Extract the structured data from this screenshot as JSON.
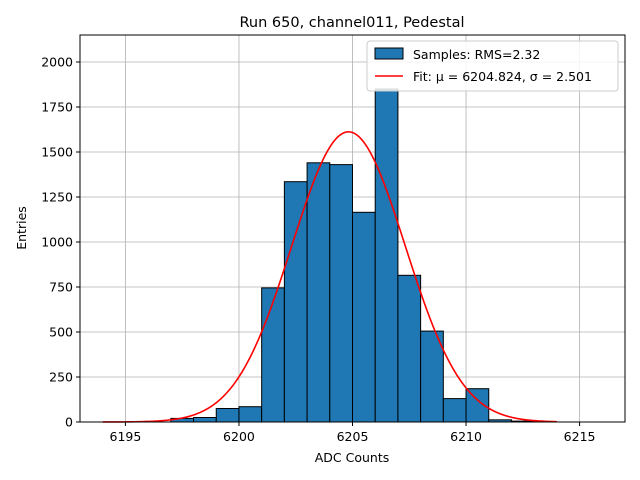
{
  "chart_data": {
    "type": "bar",
    "title": "Run 650, channel011, Pedestal",
    "xlabel": "ADC Counts",
    "ylabel": "Entries",
    "xlim": [
      6193,
      6217
    ],
    "ylim": [
      0,
      2150
    ],
    "xticks": [
      6195,
      6200,
      6205,
      6210,
      6215
    ],
    "yticks": [
      0,
      250,
      500,
      750,
      1000,
      1250,
      1500,
      1750,
      2000
    ],
    "grid": true,
    "legend_position": "top-right",
    "histogram": {
      "name": "Samples: RMS=2.32",
      "color": "#1f77b4",
      "bins": [
        {
          "x0": 6196.0,
          "x1": 6197.0,
          "count": 0
        },
        {
          "x0": 6197.0,
          "x1": 6198.0,
          "count": 20
        },
        {
          "x0": 6198.0,
          "x1": 6199.0,
          "count": 25
        },
        {
          "x0": 6199.0,
          "x1": 6200.0,
          "count": 75
        },
        {
          "x0": 6200.0,
          "x1": 6201.0,
          "count": 85
        },
        {
          "x0": 6201.0,
          "x1": 6202.0,
          "count": 745
        },
        {
          "x0": 6202.0,
          "x1": 6203.0,
          "count": 1335
        },
        {
          "x0": 6203.0,
          "x1": 6204.0,
          "count": 1440
        },
        {
          "x0": 6204.0,
          "x1": 6205.0,
          "count": 1430
        },
        {
          "x0": 6205.0,
          "x1": 6206.0,
          "count": 1165
        },
        {
          "x0": 6206.0,
          "x1": 6207.0,
          "count": 1850
        },
        {
          "x0": 6207.0,
          "x1": 6208.0,
          "count": 815
        },
        {
          "x0": 6208.0,
          "x1": 6209.0,
          "count": 505
        },
        {
          "x0": 6209.0,
          "x1": 6210.0,
          "count": 130
        },
        {
          "x0": 6210.0,
          "x1": 6211.0,
          "count": 185
        },
        {
          "x0": 6211.0,
          "x1": 6212.0,
          "count": 12
        },
        {
          "x0": 6212.0,
          "x1": 6213.0,
          "count": 5
        }
      ]
    },
    "fit": {
      "name": "Fit: μ = 6204.824, σ = 2.501",
      "mu": 6204.824,
      "sigma": 2.501,
      "amplitude": 1612,
      "x_range": [
        6194,
        6214
      ],
      "color": "#ff0000"
    }
  }
}
